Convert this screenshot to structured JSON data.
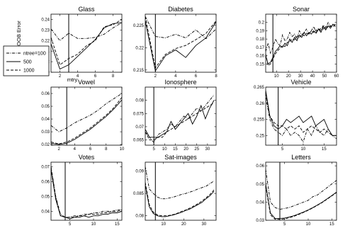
{
  "figure": {
    "ylabel": "OOB Error",
    "xlabel": "mtry",
    "legend": {
      "placement": "left",
      "entries": [
        {
          "name": "ntree=100",
          "dash": "dashdot"
        },
        {
          "name": "500",
          "dash": "solid"
        },
        {
          "name": "1000",
          "dash": "dashed"
        }
      ]
    }
  },
  "chart_data": [
    {
      "type": "line",
      "title": "Glass",
      "xlim": [
        1,
        9
      ],
      "ylim": [
        0.19,
        0.245
      ],
      "xticks": [
        2,
        4,
        6,
        8
      ],
      "yticks": [
        0.19,
        0.2,
        0.21,
        0.22,
        0.23,
        0.24
      ],
      "ytick_labels": [
        "0.19",
        "0.2",
        "0.21",
        "0.22",
        "0.23",
        "0.24"
      ],
      "vline": 3,
      "x": [
        1,
        2,
        3,
        4,
        5,
        6,
        7,
        8,
        9
      ],
      "series": [
        {
          "name": "ntree=100",
          "dash": "dashdot",
          "values": [
            0.231,
            0.22,
            0.227,
            0.222,
            0.222,
            0.223,
            0.226,
            0.232,
            0.237
          ]
        },
        {
          "name": "500",
          "dash": "solid",
          "values": [
            0.217,
            0.193,
            0.197,
            0.205,
            0.213,
            0.221,
            0.232,
            0.236,
            0.237
          ]
        },
        {
          "name": "1000",
          "dash": "dashed",
          "values": [
            0.223,
            0.197,
            0.203,
            0.207,
            0.215,
            0.22,
            0.233,
            0.235,
            0.24
          ]
        }
      ]
    },
    {
      "type": "line",
      "title": "Diabetes",
      "xlim": [
        1,
        8
      ],
      "ylim": [
        0.2145,
        0.2275
      ],
      "xticks": [
        2,
        4,
        6,
        8
      ],
      "yticks": [
        0.215,
        0.22,
        0.225
      ],
      "ytick_labels": [
        "0.215",
        "0.22",
        "0.225"
      ],
      "vline": 2,
      "x": [
        1,
        2,
        3,
        4,
        5,
        6,
        7,
        8
      ],
      "series": [
        {
          "name": "ntree=100",
          "dash": "dashdot",
          "values": [
            0.227,
            0.2225,
            0.2222,
            0.223,
            0.2222,
            0.224,
            0.222,
            0.2242
          ]
        },
        {
          "name": "500",
          "dash": "solid",
          "values": [
            0.226,
            0.2148,
            0.2182,
            0.2195,
            0.2178,
            0.2205,
            0.2222,
            0.2258
          ]
        },
        {
          "name": "1000",
          "dash": "dashed",
          "values": [
            0.227,
            0.2155,
            0.2185,
            0.2198,
            0.2205,
            0.2218,
            0.2232,
            0.226
          ]
        }
      ]
    },
    {
      "type": "line",
      "title": "Sonar",
      "xlim": [
        1,
        60
      ],
      "ylim": [
        0.14,
        0.21
      ],
      "xticks": [
        10,
        20,
        30,
        40,
        50,
        60
      ],
      "yticks": [
        0.15,
        0.16,
        0.17,
        0.18,
        0.19,
        0.2
      ],
      "ytick_labels": [
        "0.15",
        "0.16",
        "0.17",
        "0.18",
        "0.19",
        "0.2"
      ],
      "vline": 7,
      "x": [
        1,
        3,
        5,
        7,
        9,
        11,
        13,
        15,
        17,
        19,
        21,
        23,
        25,
        27,
        29,
        31,
        33,
        35,
        37,
        39,
        41,
        43,
        45,
        47,
        49,
        51,
        53,
        55,
        57,
        59
      ],
      "series": [
        {
          "name": "ntree=100",
          "dash": "dashdot",
          "values": [
            0.165,
            0.175,
            0.163,
            0.17,
            0.18,
            0.175,
            0.172,
            0.185,
            0.178,
            0.18,
            0.188,
            0.183,
            0.186,
            0.18,
            0.19,
            0.185,
            0.188,
            0.192,
            0.186,
            0.19,
            0.195,
            0.188,
            0.193,
            0.19,
            0.197,
            0.193,
            0.2,
            0.195,
            0.197,
            0.198
          ]
        },
        {
          "name": "500",
          "dash": "solid",
          "values": [
            0.16,
            0.15,
            0.152,
            0.158,
            0.165,
            0.168,
            0.172,
            0.17,
            0.175,
            0.172,
            0.18,
            0.176,
            0.182,
            0.178,
            0.185,
            0.182,
            0.188,
            0.184,
            0.188,
            0.186,
            0.19,
            0.187,
            0.192,
            0.188,
            0.195,
            0.191,
            0.196,
            0.193,
            0.198,
            0.195
          ]
        },
        {
          "name": "1000",
          "dash": "dashed",
          "values": [
            0.162,
            0.148,
            0.15,
            0.156,
            0.162,
            0.166,
            0.169,
            0.172,
            0.171,
            0.176,
            0.177,
            0.18,
            0.179,
            0.183,
            0.182,
            0.185,
            0.184,
            0.187,
            0.186,
            0.19,
            0.188,
            0.191,
            0.19,
            0.193,
            0.192,
            0.195,
            0.194,
            0.196,
            0.195,
            0.197
          ]
        }
      ]
    },
    {
      "type": "line",
      "title": "Vowel",
      "xlim": [
        1,
        10
      ],
      "ylim": [
        0.0195,
        0.065
      ],
      "xticks": [
        2,
        4,
        6,
        8,
        10
      ],
      "yticks": [
        0.02,
        0.03,
        0.04,
        0.05,
        0.06
      ],
      "ytick_labels": [
        "0.02",
        "0.03",
        "0.04",
        "0.05",
        "0.06"
      ],
      "vline": 3,
      "x": [
        1,
        2,
        3,
        4,
        5,
        6,
        7,
        8,
        9,
        10
      ],
      "series": [
        {
          "name": "ntree=100",
          "dash": "dashdot",
          "values": [
            0.035,
            0.03,
            0.033,
            0.037,
            0.04,
            0.043,
            0.047,
            0.052,
            0.056,
            0.06
          ]
        },
        {
          "name": "500",
          "dash": "solid",
          "values": [
            0.021,
            0.02,
            0.021,
            0.024,
            0.028,
            0.032,
            0.037,
            0.042,
            0.048,
            0.055
          ]
        },
        {
          "name": "1000",
          "dash": "dashed",
          "values": [
            0.022,
            0.0205,
            0.022,
            0.025,
            0.029,
            0.033,
            0.038,
            0.043,
            0.049,
            0.057
          ]
        }
      ]
    },
    {
      "type": "line",
      "title": "Ionosphere",
      "xlim": [
        1,
        34
      ],
      "ylim": [
        0.063,
        0.085
      ],
      "xticks": [
        5,
        10,
        15,
        20,
        25,
        30
      ],
      "yticks": [
        0.065,
        0.07,
        0.075,
        0.08
      ],
      "ytick_labels": [
        "0.065",
        "0.07",
        "0.075",
        "0.08"
      ],
      "vline": 5,
      "x": [
        1,
        3,
        5,
        7,
        9,
        11,
        13,
        15,
        17,
        19,
        21,
        23,
        25,
        27,
        29,
        31,
        33
      ],
      "series": [
        {
          "name": "ntree=100",
          "dash": "dashdot",
          "values": [
            0.068,
            0.066,
            0.064,
            0.067,
            0.068,
            0.069,
            0.071,
            0.07,
            0.072,
            0.074,
            0.073,
            0.075,
            0.077,
            0.076,
            0.078,
            0.08,
            0.082
          ]
        },
        {
          "name": "500",
          "dash": "solid",
          "values": [
            0.069,
            0.066,
            0.066,
            0.066,
            0.067,
            0.068,
            0.072,
            0.069,
            0.071,
            0.073,
            0.075,
            0.071,
            0.074,
            0.078,
            0.073,
            0.077,
            0.08
          ]
        },
        {
          "name": "1000",
          "dash": "dashed",
          "values": [
            0.068,
            0.065,
            0.065,
            0.066,
            0.066,
            0.068,
            0.069,
            0.07,
            0.071,
            0.072,
            0.073,
            0.074,
            0.075,
            0.076,
            0.077,
            0.078,
            0.079
          ]
        }
      ]
    },
    {
      "type": "line",
      "title": "Vehicle",
      "xlim": [
        1,
        18
      ],
      "ylim": [
        0.247,
        0.265
      ],
      "xticks": [
        5,
        10,
        15
      ],
      "yticks": [
        0.25,
        0.255,
        0.26,
        0.265
      ],
      "ytick_labels": [
        "0.25",
        "0.255",
        "0.26",
        "0.265"
      ],
      "vline": 4,
      "x": [
        1,
        2,
        3,
        4,
        5,
        6,
        7,
        8,
        9,
        10,
        11,
        12,
        13,
        14,
        15,
        16,
        17,
        18
      ],
      "series": [
        {
          "name": "ntree=100",
          "dash": "dashdot",
          "values": [
            0.262,
            0.255,
            0.252,
            0.251,
            0.25,
            0.252,
            0.25,
            0.251,
            0.25,
            0.248,
            0.252,
            0.25,
            0.253,
            0.251,
            0.25,
            0.252,
            0.25,
            0.249
          ]
        },
        {
          "name": "500",
          "dash": "solid",
          "values": [
            0.264,
            0.256,
            0.253,
            0.252,
            0.253,
            0.255,
            0.254,
            0.255,
            0.256,
            0.254,
            0.255,
            0.256,
            0.253,
            0.254,
            0.255,
            0.252,
            0.25,
            0.25
          ]
        },
        {
          "name": "1000",
          "dash": "dashed",
          "values": [
            0.263,
            0.256,
            0.254,
            0.253,
            0.253,
            0.252,
            0.253,
            0.252,
            0.253,
            0.251,
            0.252,
            0.253,
            0.252,
            0.251,
            0.252,
            0.251,
            0.25,
            0.25
          ]
        }
      ]
    },
    {
      "type": "line",
      "title": "Votes",
      "xlim": [
        1,
        16
      ],
      "ylim": [
        0.034,
        0.073
      ],
      "xticks": [
        5,
        10,
        15
      ],
      "yticks": [
        0.04,
        0.05,
        0.06,
        0.07
      ],
      "ytick_labels": [
        "0.04",
        "0.05",
        "0.06",
        "0.07"
      ],
      "vline": 4,
      "x": [
        1,
        2,
        3,
        4,
        5,
        6,
        7,
        8,
        9,
        10,
        11,
        12,
        13,
        14,
        15,
        16
      ],
      "series": [
        {
          "name": "ntree=100",
          "dash": "dashdot",
          "values": [
            0.07,
            0.05,
            0.038,
            0.036,
            0.036,
            0.037,
            0.037,
            0.038,
            0.038,
            0.039,
            0.039,
            0.04,
            0.04,
            0.04,
            0.041,
            0.041
          ]
        },
        {
          "name": "500",
          "dash": "solid",
          "values": [
            0.068,
            0.048,
            0.037,
            0.036,
            0.035,
            0.036,
            0.036,
            0.037,
            0.036,
            0.037,
            0.037,
            0.038,
            0.038,
            0.039,
            0.039,
            0.04
          ]
        },
        {
          "name": "1000",
          "dash": "dashed",
          "values": [
            0.069,
            0.049,
            0.037,
            0.036,
            0.036,
            0.036,
            0.037,
            0.037,
            0.038,
            0.038,
            0.038,
            0.039,
            0.039,
            0.04,
            0.04,
            0.041
          ]
        }
      ]
    },
    {
      "type": "line",
      "title": "Sat-images",
      "xlim": [
        1,
        36
      ],
      "ylim": [
        0.079,
        0.092
      ],
      "xticks": [
        10,
        20,
        30
      ],
      "yticks": [
        0.08,
        0.085,
        0.09
      ],
      "ytick_labels": [
        "0.08",
        "0.085",
        "0.09"
      ],
      "vline": 6,
      "x": [
        1,
        3,
        5,
        7,
        9,
        11,
        13,
        15,
        17,
        19,
        21,
        23,
        25,
        27,
        29,
        31,
        33,
        35
      ],
      "series": [
        {
          "name": "ntree=100",
          "dash": "dashdot",
          "values": [
            0.091,
            0.086,
            0.085,
            0.0842,
            0.0838,
            0.0838,
            0.084,
            0.0842,
            0.0845,
            0.0848,
            0.085,
            0.0853,
            0.0856,
            0.086,
            0.0863,
            0.0866,
            0.0872,
            0.0878
          ]
        },
        {
          "name": "500",
          "dash": "solid",
          "values": [
            0.087,
            0.082,
            0.0805,
            0.08,
            0.0798,
            0.0798,
            0.08,
            0.0802,
            0.0805,
            0.0808,
            0.0812,
            0.0815,
            0.082,
            0.0825,
            0.083,
            0.0838,
            0.0845,
            0.0855
          ]
        },
        {
          "name": "1000",
          "dash": "dashed",
          "values": [
            0.0875,
            0.0825,
            0.0808,
            0.0802,
            0.08,
            0.08,
            0.0801,
            0.0803,
            0.0806,
            0.081,
            0.0813,
            0.0817,
            0.0822,
            0.0827,
            0.0833,
            0.084,
            0.0848,
            0.0858
          ]
        }
      ]
    },
    {
      "type": "line",
      "title": "Letters",
      "xlim": [
        1,
        16
      ],
      "ylim": [
        0.03,
        0.062
      ],
      "xticks": [
        5,
        10,
        15
      ],
      "yticks": [
        0.03,
        0.04,
        0.05,
        0.06
      ],
      "ytick_labels": [
        "0.03",
        "0.04",
        "0.05",
        "0.06"
      ],
      "vline": 4,
      "x": [
        1,
        2,
        3,
        4,
        5,
        6,
        7,
        8,
        9,
        10,
        11,
        12,
        13,
        14,
        15,
        16
      ],
      "series": [
        {
          "name": "ntree=100",
          "dash": "dashdot",
          "values": [
            0.058,
            0.04,
            0.037,
            0.036,
            0.0365,
            0.037,
            0.038,
            0.039,
            0.04,
            0.041,
            0.043,
            0.044,
            0.046,
            0.048,
            0.05,
            0.052
          ]
        },
        {
          "name": "500",
          "dash": "solid",
          "values": [
            0.05,
            0.034,
            0.031,
            0.031,
            0.0312,
            0.0318,
            0.0325,
            0.0335,
            0.0345,
            0.0357,
            0.037,
            0.0385,
            0.04,
            0.0418,
            0.0436,
            0.0455
          ]
        },
        {
          "name": "1000",
          "dash": "dashed",
          "values": [
            0.049,
            0.033,
            0.0305,
            0.0305,
            0.0308,
            0.0314,
            0.0322,
            0.0332,
            0.0343,
            0.0355,
            0.0368,
            0.0383,
            0.0398,
            0.0416,
            0.0434,
            0.0453
          ]
        }
      ]
    }
  ]
}
